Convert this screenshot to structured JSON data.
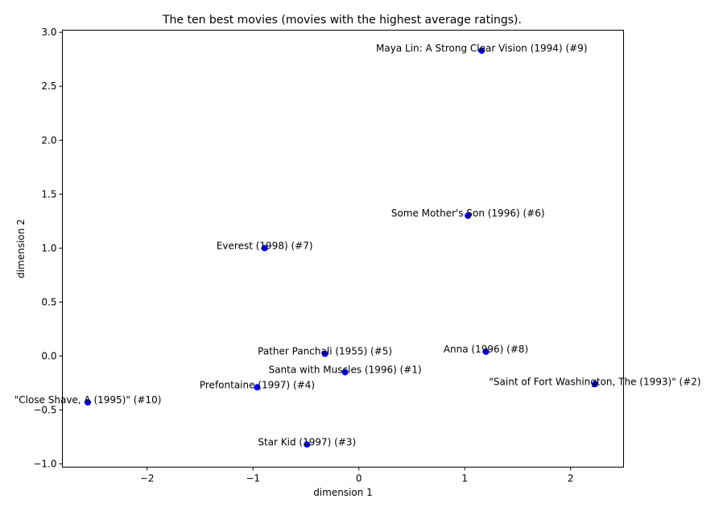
{
  "chart_data": {
    "type": "scatter",
    "title": "The ten best movies (movies with the highest average ratings).",
    "xlabel": "dimension 1",
    "ylabel": "dimension 2",
    "xlim": [
      -2.8,
      2.5
    ],
    "ylim": [
      -1.03,
      3.02
    ],
    "x_ticks": [
      -2,
      -1,
      0,
      1,
      2
    ],
    "x_tick_labels": [
      "−2",
      "−1",
      "0",
      "1",
      "2"
    ],
    "y_ticks": [
      -1.0,
      -0.5,
      0.0,
      0.5,
      1.0,
      1.5,
      2.0,
      2.5,
      3.0
    ],
    "y_tick_labels": [
      "−1.0",
      "−0.5",
      "0.0",
      "0.5",
      "1.0",
      "1.5",
      "2.0",
      "2.5",
      "3.0"
    ],
    "grid": false,
    "point_color": "#0000ff",
    "points": [
      {
        "label": "Maya Lin: A Strong Clear Vision (1994) (#9)",
        "x": 1.16,
        "y": 2.83
      },
      {
        "label": "Some Mother's Son (1996) (#6)",
        "x": 1.03,
        "y": 1.3
      },
      {
        "label": "Everest (1998) (#7)",
        "x": -0.89,
        "y": 1.0
      },
      {
        "label": "Pather Panchali (1955) (#5)",
        "x": -0.32,
        "y": 0.02
      },
      {
        "label": "Anna (1996) (#8)",
        "x": 1.2,
        "y": 0.04
      },
      {
        "label": "Santa with Muscles (1996) (#1)",
        "x": -0.13,
        "y": -0.15
      },
      {
        "label": "\"Saint of Fort Washington, The (1993)\" (#2)",
        "x": 2.23,
        "y": -0.26
      },
      {
        "label": "Prefontaine (1997) (#4)",
        "x": -0.96,
        "y": -0.29
      },
      {
        "label": "\"Close Shave, A (1995)\" (#10)",
        "x": -2.56,
        "y": -0.43
      },
      {
        "label": "Star Kid (1997) (#3)",
        "x": -0.49,
        "y": -0.82
      }
    ]
  }
}
